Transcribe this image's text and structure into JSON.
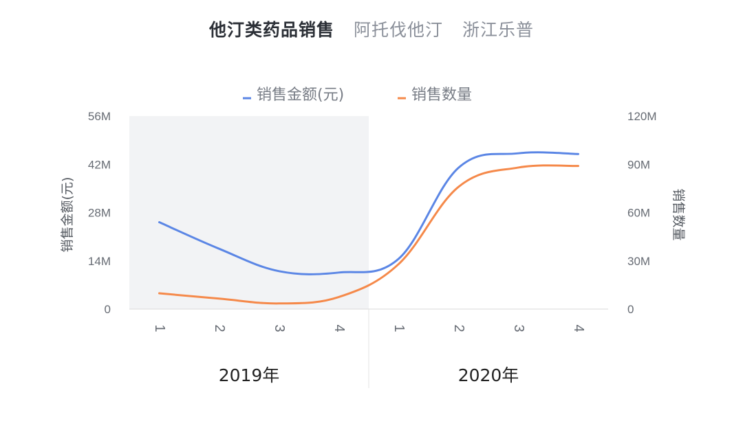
{
  "tabs": [
    {
      "label": "他汀类药品销售",
      "active": true
    },
    {
      "label": "阿托伐他汀",
      "active": false
    },
    {
      "label": "浙江乐普",
      "active": false
    }
  ],
  "chart_data": {
    "type": "line",
    "x": [
      "1",
      "2",
      "3",
      "4",
      "1",
      "2",
      "3",
      "4"
    ],
    "groups": [
      {
        "label": "2019年",
        "categories": [
          "1",
          "2",
          "3",
          "4"
        ],
        "shaded": true
      },
      {
        "label": "2020年",
        "categories": [
          "1",
          "2",
          "3",
          "4"
        ],
        "shaded": false
      }
    ],
    "series": [
      {
        "name": "销售金额(元)",
        "axis": "left",
        "color": "#5b86e5",
        "values": [
          25.2,
          17.5,
          11.0,
          10.6,
          14.6,
          41.0,
          45.2,
          45.0
        ]
      },
      {
        "name": "销售数量",
        "axis": "right",
        "color": "#f5894a",
        "values": [
          9.8,
          6.5,
          3.5,
          7.5,
          28.0,
          76.0,
          88.0,
          89.0
        ]
      }
    ],
    "y_left": {
      "label": "销售金额(元)",
      "range": [
        0,
        56
      ],
      "ticks": [
        "0",
        "14M",
        "28M",
        "42M",
        "56M"
      ],
      "tick_values": [
        0,
        14,
        28,
        42,
        56
      ]
    },
    "y_right": {
      "label": "销售数量",
      "range": [
        0,
        120
      ],
      "ticks": [
        "0",
        "30M",
        "60M",
        "90M",
        "120M"
      ],
      "tick_values": [
        0,
        30,
        60,
        90,
        120
      ]
    },
    "legend_position": "top-center",
    "grid": false
  }
}
